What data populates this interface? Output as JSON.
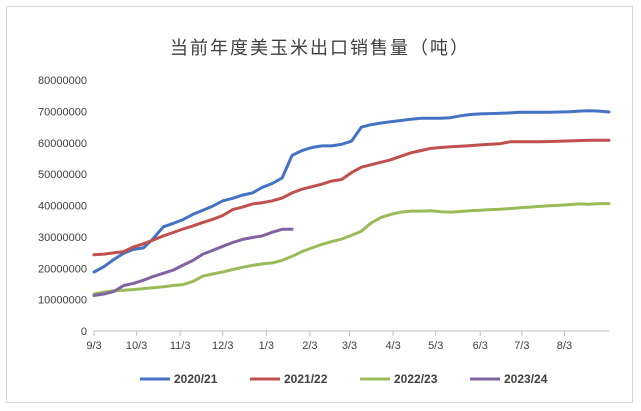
{
  "chart_data": {
    "type": "line",
    "title": "当前年度美玉米出口销售量（吨）",
    "xlabel": "",
    "ylabel": "",
    "ylim": [
      0,
      80000000
    ],
    "yticks": [
      0,
      10000000,
      20000000,
      30000000,
      40000000,
      50000000,
      60000000,
      70000000,
      80000000
    ],
    "ytick_labels": [
      "0",
      "10000000",
      "20000000",
      "30000000",
      "40000000",
      "50000000",
      "60000000",
      "70000000",
      "80000000"
    ],
    "xlim": [
      0,
      52
    ],
    "xtick_labels": [
      "9/3",
      "10/3",
      "11/3",
      "12/3",
      "1/3",
      "2/3",
      "3/3",
      "4/3",
      "5/3",
      "6/3",
      "7/3",
      "8/3"
    ],
    "xtick_weeks": [
      0,
      4.3,
      8.7,
      13,
      17.4,
      21.8,
      25.8,
      30.2,
      34.5,
      39,
      43.2,
      47.5
    ],
    "grid": false,
    "legend_position": "bottom",
    "series": [
      {
        "name": "2020/21",
        "color": "#4472c4",
        "x": [
          0,
          1,
          2,
          3,
          4,
          5,
          6,
          7,
          8,
          9,
          10,
          11,
          12,
          13,
          14,
          15,
          16,
          17,
          18,
          19,
          20,
          21,
          22,
          23,
          24,
          25,
          26,
          27,
          28,
          29,
          30,
          31,
          32,
          33,
          34,
          35,
          36,
          37,
          38,
          39,
          40,
          41,
          42,
          43,
          44,
          45,
          46,
          47,
          48,
          49,
          50,
          51,
          52
        ],
        "values": [
          18800000,
          20500000,
          22800000,
          24800000,
          26000000,
          26500000,
          29500000,
          33200000,
          34300000,
          35500000,
          37200000,
          38500000,
          39800000,
          41500000,
          42300000,
          43300000,
          44000000,
          45800000,
          47000000,
          48800000,
          56000000,
          57500000,
          58500000,
          59000000,
          59000000,
          59500000,
          60500000,
          65000000,
          65800000,
          66300000,
          66700000,
          67100000,
          67500000,
          67800000,
          67800000,
          67800000,
          68000000,
          68600000,
          69000000,
          69200000,
          69300000,
          69400000,
          69500000,
          69700000,
          69700000,
          69700000,
          69700000,
          69800000,
          69900000,
          70100000,
          70200000,
          70100000,
          69800000
        ]
      },
      {
        "name": "2021/22",
        "color": "#c0504d",
        "x": [
          0,
          1,
          2,
          3,
          4,
          5,
          6,
          7,
          8,
          9,
          10,
          11,
          12,
          13,
          14,
          15,
          16,
          17,
          18,
          19,
          20,
          21,
          22,
          23,
          24,
          25,
          26,
          27,
          28,
          29,
          30,
          31,
          32,
          33,
          34,
          35,
          36,
          37,
          38,
          39,
          40,
          41,
          42,
          43,
          44,
          45,
          46,
          47,
          48,
          49,
          50,
          51,
          52
        ],
        "values": [
          24300000,
          24500000,
          24900000,
          25300000,
          26800000,
          27800000,
          29000000,
          30300000,
          31400000,
          32500000,
          33500000,
          34600000,
          35600000,
          36800000,
          38700000,
          39500000,
          40500000,
          40900000,
          41500000,
          42400000,
          44000000,
          45200000,
          46000000,
          46800000,
          47800000,
          48300000,
          50500000,
          52200000,
          53000000,
          53800000,
          54600000,
          55700000,
          56800000,
          57500000,
          58200000,
          58500000,
          58700000,
          58900000,
          59100000,
          59300000,
          59500000,
          59700000,
          60300000,
          60300000,
          60300000,
          60300000,
          60400000,
          60500000,
          60600000,
          60700000,
          60800000,
          60800000,
          60800000
        ]
      },
      {
        "name": "2022/23",
        "color": "#9bbb59",
        "x": [
          0,
          1,
          2,
          3,
          4,
          5,
          6,
          7,
          8,
          9,
          10,
          11,
          12,
          13,
          14,
          15,
          16,
          17,
          18,
          19,
          20,
          21,
          22,
          23,
          24,
          25,
          26,
          27,
          28,
          29,
          30,
          31,
          32,
          33,
          34,
          35,
          36,
          37,
          38,
          39,
          40,
          41,
          42,
          43,
          44,
          45,
          46,
          47,
          48,
          49,
          50,
          51,
          52
        ],
        "values": [
          11800000,
          12400000,
          12800000,
          13000000,
          13200000,
          13500000,
          13800000,
          14100000,
          14500000,
          14800000,
          15800000,
          17500000,
          18200000,
          18800000,
          19600000,
          20300000,
          20900000,
          21400000,
          21700000,
          22500000,
          23800000,
          25300000,
          26500000,
          27600000,
          28500000,
          29300000,
          30500000,
          31800000,
          34500000,
          36200000,
          37200000,
          37900000,
          38200000,
          38200000,
          38300000,
          38000000,
          37900000,
          38100000,
          38300000,
          38500000,
          38700000,
          38800000,
          39000000,
          39300000,
          39500000,
          39700000,
          39900000,
          40100000,
          40300000,
          40500000,
          40400000,
          40600000,
          40600000
        ]
      },
      {
        "name": "2023/24",
        "color": "#8064a2",
        "x": [
          0,
          1,
          2,
          3,
          4,
          5,
          6,
          7,
          8,
          9,
          10,
          11,
          12,
          13,
          14,
          15,
          16,
          17,
          18,
          19,
          20
        ],
        "values": [
          11300000,
          11800000,
          12600000,
          14500000,
          15200000,
          16200000,
          17400000,
          18400000,
          19400000,
          21000000,
          22500000,
          24500000,
          25700000,
          27000000,
          28200000,
          29200000,
          29800000,
          30300000,
          31500000,
          32400000,
          32400000
        ]
      }
    ]
  }
}
